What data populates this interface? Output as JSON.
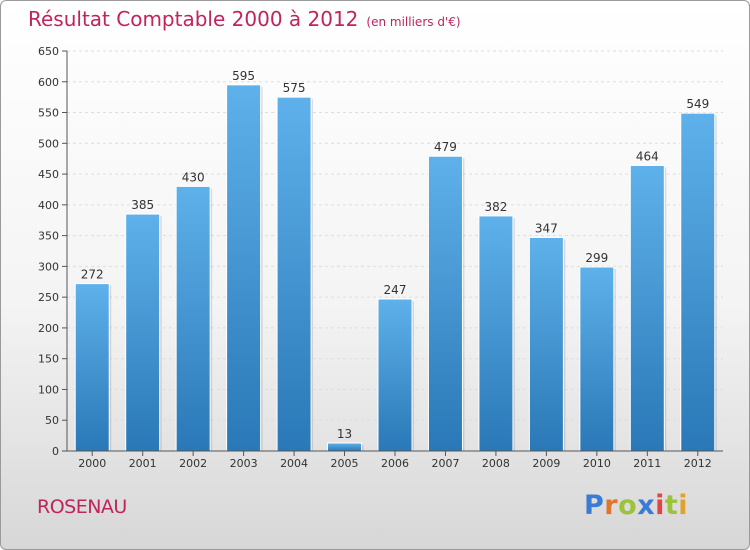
{
  "title": "Résultat Comptable 2000 à 2012",
  "subtitle": "(en milliers d'€)",
  "footer_label": "ROSENAU",
  "logo": {
    "letters": [
      "P",
      "r",
      "o",
      "x",
      "i",
      "t",
      "i"
    ],
    "colors": [
      "#3a7bd5",
      "#e0762b",
      "#9cc43a",
      "#3a7bd5",
      "#e04646",
      "#9cc43a",
      "#e0a22b"
    ]
  },
  "colors": {
    "title": "#c0245c",
    "bar_top": "#5eb1ea",
    "bar_bottom": "#2a78b7",
    "axis": "#555555",
    "grid": "#dddddd"
  },
  "chart_data": {
    "type": "bar",
    "categories": [
      "2000",
      "2001",
      "2002",
      "2003",
      "2004",
      "2005",
      "2006",
      "2007",
      "2008",
      "2009",
      "2010",
      "2011",
      "2012"
    ],
    "values": [
      272,
      385,
      430,
      595,
      575,
      13,
      247,
      479,
      382,
      347,
      299,
      464,
      549
    ],
    "ylim": [
      0,
      650
    ],
    "yticks": [
      0,
      50,
      100,
      150,
      200,
      250,
      300,
      350,
      400,
      450,
      500,
      550,
      600,
      650
    ],
    "grid": true,
    "data_labels": true
  }
}
